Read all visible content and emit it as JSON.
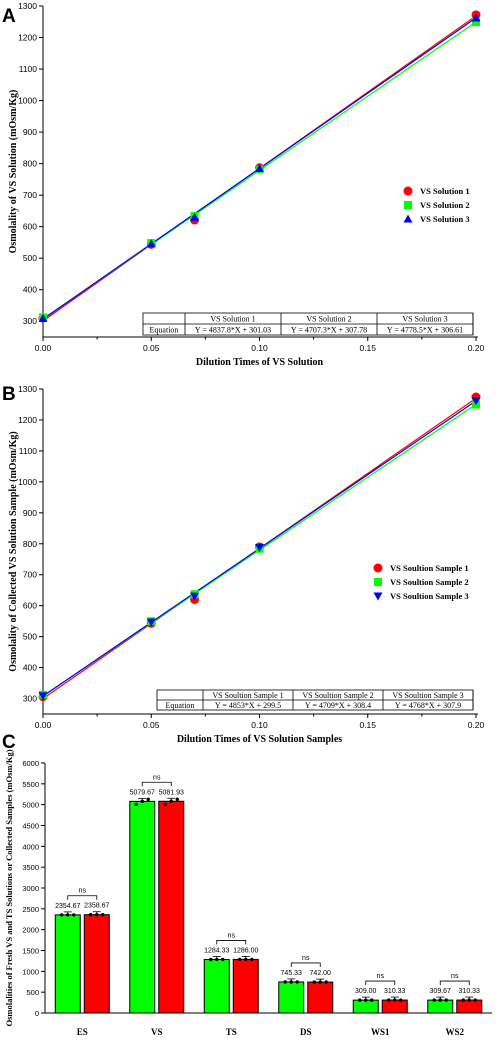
{
  "chart_data": [
    {
      "panel": "A",
      "type": "scatter",
      "xlabel": "Dilution Times of VS Solution",
      "ylabel": "Osmolality of VS Solution (mOsm/Kg)",
      "xlim": [
        0.0,
        0.2
      ],
      "ylim": [
        250,
        1300
      ],
      "xticks": [
        "0.00",
        "0.05",
        "0.10",
        "0.15",
        "0.20"
      ],
      "yticks": [
        "300",
        "400",
        "500",
        "600",
        "700",
        "800",
        "900",
        "1000",
        "1100",
        "1200",
        "1300"
      ],
      "legend_position": "right",
      "series": [
        {
          "name": "VS Solution 1",
          "color": "#ff0000",
          "marker": "circle",
          "x": [
            0,
            0.05,
            0.07,
            0.1,
            0.2
          ],
          "y": [
            310,
            544,
            621,
            787,
            1272
          ],
          "fit": {
            "slope": 4837.8,
            "intercept": 301.03
          }
        },
        {
          "name": "VS Solution 2",
          "color": "#00ff00",
          "marker": "square",
          "x": [
            0,
            0.05,
            0.07,
            0.1,
            0.2
          ],
          "y": [
            312,
            548,
            634,
            782,
            1249
          ],
          "fit": {
            "slope": 4707.3,
            "intercept": 307.78
          }
        },
        {
          "name": "VS Solution 3",
          "color": "#0000ff",
          "marker": "triangle",
          "x": [
            0,
            0.05,
            0.07,
            0.1,
            0.2
          ],
          "y": [
            309,
            546,
            630,
            785,
            1262
          ],
          "fit": {
            "slope": 4778.5,
            "intercept": 306.61
          }
        }
      ],
      "table": {
        "row_header": "Equation",
        "columns": [
          "VS Solution 1",
          "VS Solution 2",
          "VS Solution 3"
        ],
        "equations": [
          "Y = 4837.8*X + 301.03",
          "Y = 4707.3*X + 307.78",
          "Y = 4778.5*X + 306.61"
        ]
      }
    },
    {
      "panel": "B",
      "type": "scatter",
      "xlabel": "Dilution Times of VS Solution Samples",
      "ylabel": "Osmolality of Collected VS Solution Sample (mOsm/Kg)",
      "xlim": [
        0.0,
        0.2
      ],
      "ylim": [
        250,
        1300
      ],
      "xticks": [
        "0.00",
        "0.05",
        "0.10",
        "0.15",
        "0.20"
      ],
      "yticks": [
        "300",
        "400",
        "500",
        "600",
        "700",
        "800",
        "900",
        "1000",
        "1100",
        "1200",
        "1300"
      ],
      "legend_position": "right",
      "series": [
        {
          "name": "VS Soultion Sample 1",
          "color": "#ff0000",
          "marker": "circle",
          "x": [
            0,
            0.05,
            0.07,
            0.1,
            0.2
          ],
          "y": [
            306,
            543,
            620,
            790,
            1274
          ],
          "fit": {
            "slope": 4853,
            "intercept": 299.5
          }
        },
        {
          "name": "VS Soultion Sample 2",
          "color": "#00ff00",
          "marker": "square",
          "x": [
            0,
            0.05,
            0.07,
            0.1,
            0.2
          ],
          "y": [
            312,
            550,
            637,
            784,
            1250
          ],
          "fit": {
            "slope": 4709,
            "intercept": 308.4
          }
        },
        {
          "name": "VS Soultion Sample 3",
          "color": "#0000ff",
          "marker": "triangle-down",
          "x": [
            0,
            0.05,
            0.07,
            0.1,
            0.2
          ],
          "y": [
            309,
            547,
            631,
            788,
            1262
          ],
          "fit": {
            "slope": 4768,
            "intercept": 307.9
          }
        }
      ],
      "table": {
        "row_header": "Equation",
        "columns": [
          "VS Soultion Sample 1",
          "VS Soultion Sample 2",
          "VS Soultion Sample 3"
        ],
        "equations": [
          "Y = 4853*X + 299.5",
          "Y = 4709*X + 308.4",
          "Y = 4768*X + 307.9"
        ]
      }
    },
    {
      "panel": "C",
      "type": "bar",
      "ylabel": "Osmolalities of Fresh VS and TS Solutions or Collected Samples (mOsm/Kg)",
      "ylim": [
        0,
        6000
      ],
      "yticks": [
        "0",
        "500",
        "1000",
        "1500",
        "2000",
        "2500",
        "3000",
        "3500",
        "4000",
        "4500",
        "5000",
        "5500",
        "6000"
      ],
      "categories": [
        "ES",
        "VS",
        "TS",
        "DS",
        "WS1",
        "WS2"
      ],
      "series": [
        {
          "color": "#00ff00",
          "values": [
            2354.67,
            5079.67,
            1284.33,
            745.33,
            309.0,
            309.67
          ],
          "labels": [
            "2354.67",
            "5079.67",
            "1284.33",
            "745.33",
            "309.00",
            "309.67"
          ]
        },
        {
          "color": "#ff0000",
          "values": [
            2358.67,
            5081.93,
            1286.0,
            742.0,
            310.33,
            310.33
          ],
          "labels": [
            "2358.67",
            "5081.93",
            "1286.00",
            "742.00",
            "310.33",
            "310.33"
          ]
        }
      ],
      "significance": [
        "ns",
        "ns",
        "ns",
        "ns",
        "ns",
        "ns"
      ]
    }
  ],
  "panel_letters": [
    "A",
    "B",
    "C"
  ]
}
